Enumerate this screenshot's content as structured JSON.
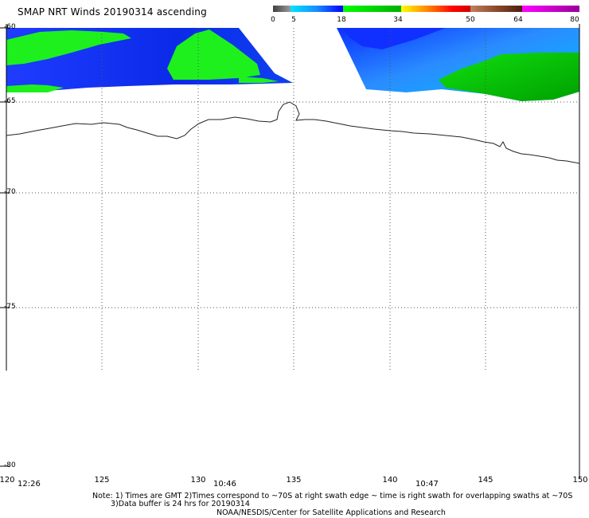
{
  "title": "SMAP NRT Winds 20190314 ascending",
  "colorbar": {
    "segments": [
      {
        "from": 0,
        "to": 5,
        "color": "#7a7a7a"
      },
      {
        "from": 5,
        "to": 18,
        "color": "#1a6cff"
      },
      {
        "from": 18,
        "to": 34,
        "color": "#22cc22"
      },
      {
        "from": 34,
        "to": 50,
        "color": "#ff6a00"
      },
      {
        "from": 50,
        "to": 64,
        "color": "#8b4a2a"
      },
      {
        "from": 64,
        "to": 80,
        "color": "#cc00cc"
      }
    ],
    "ticks": [
      "0",
      "5",
      "18",
      "34",
      "50",
      "64",
      "80"
    ]
  },
  "map": {
    "lat_labels": [
      "-60",
      "-65",
      "-70",
      "-75",
      "-80"
    ],
    "lon_labels": [
      "120",
      "125",
      "130",
      "135",
      "140",
      "145",
      "150"
    ],
    "lon_range": [
      120,
      150
    ],
    "lat_range": [
      -60,
      -80
    ]
  },
  "swath_times": [
    "12:26",
    "10:46",
    "10:47"
  ],
  "notes": {
    "line1": "Note: 1) Times are GMT 2)Times correspond to ~70S at right swath edge ~ time is right swath for overlapping swaths at ~70S",
    "line2": "3)Data buffer is 24 hrs for 20190314",
    "line3": "NOAA/NESDIS/Center for Satellite Applications and Research"
  }
}
